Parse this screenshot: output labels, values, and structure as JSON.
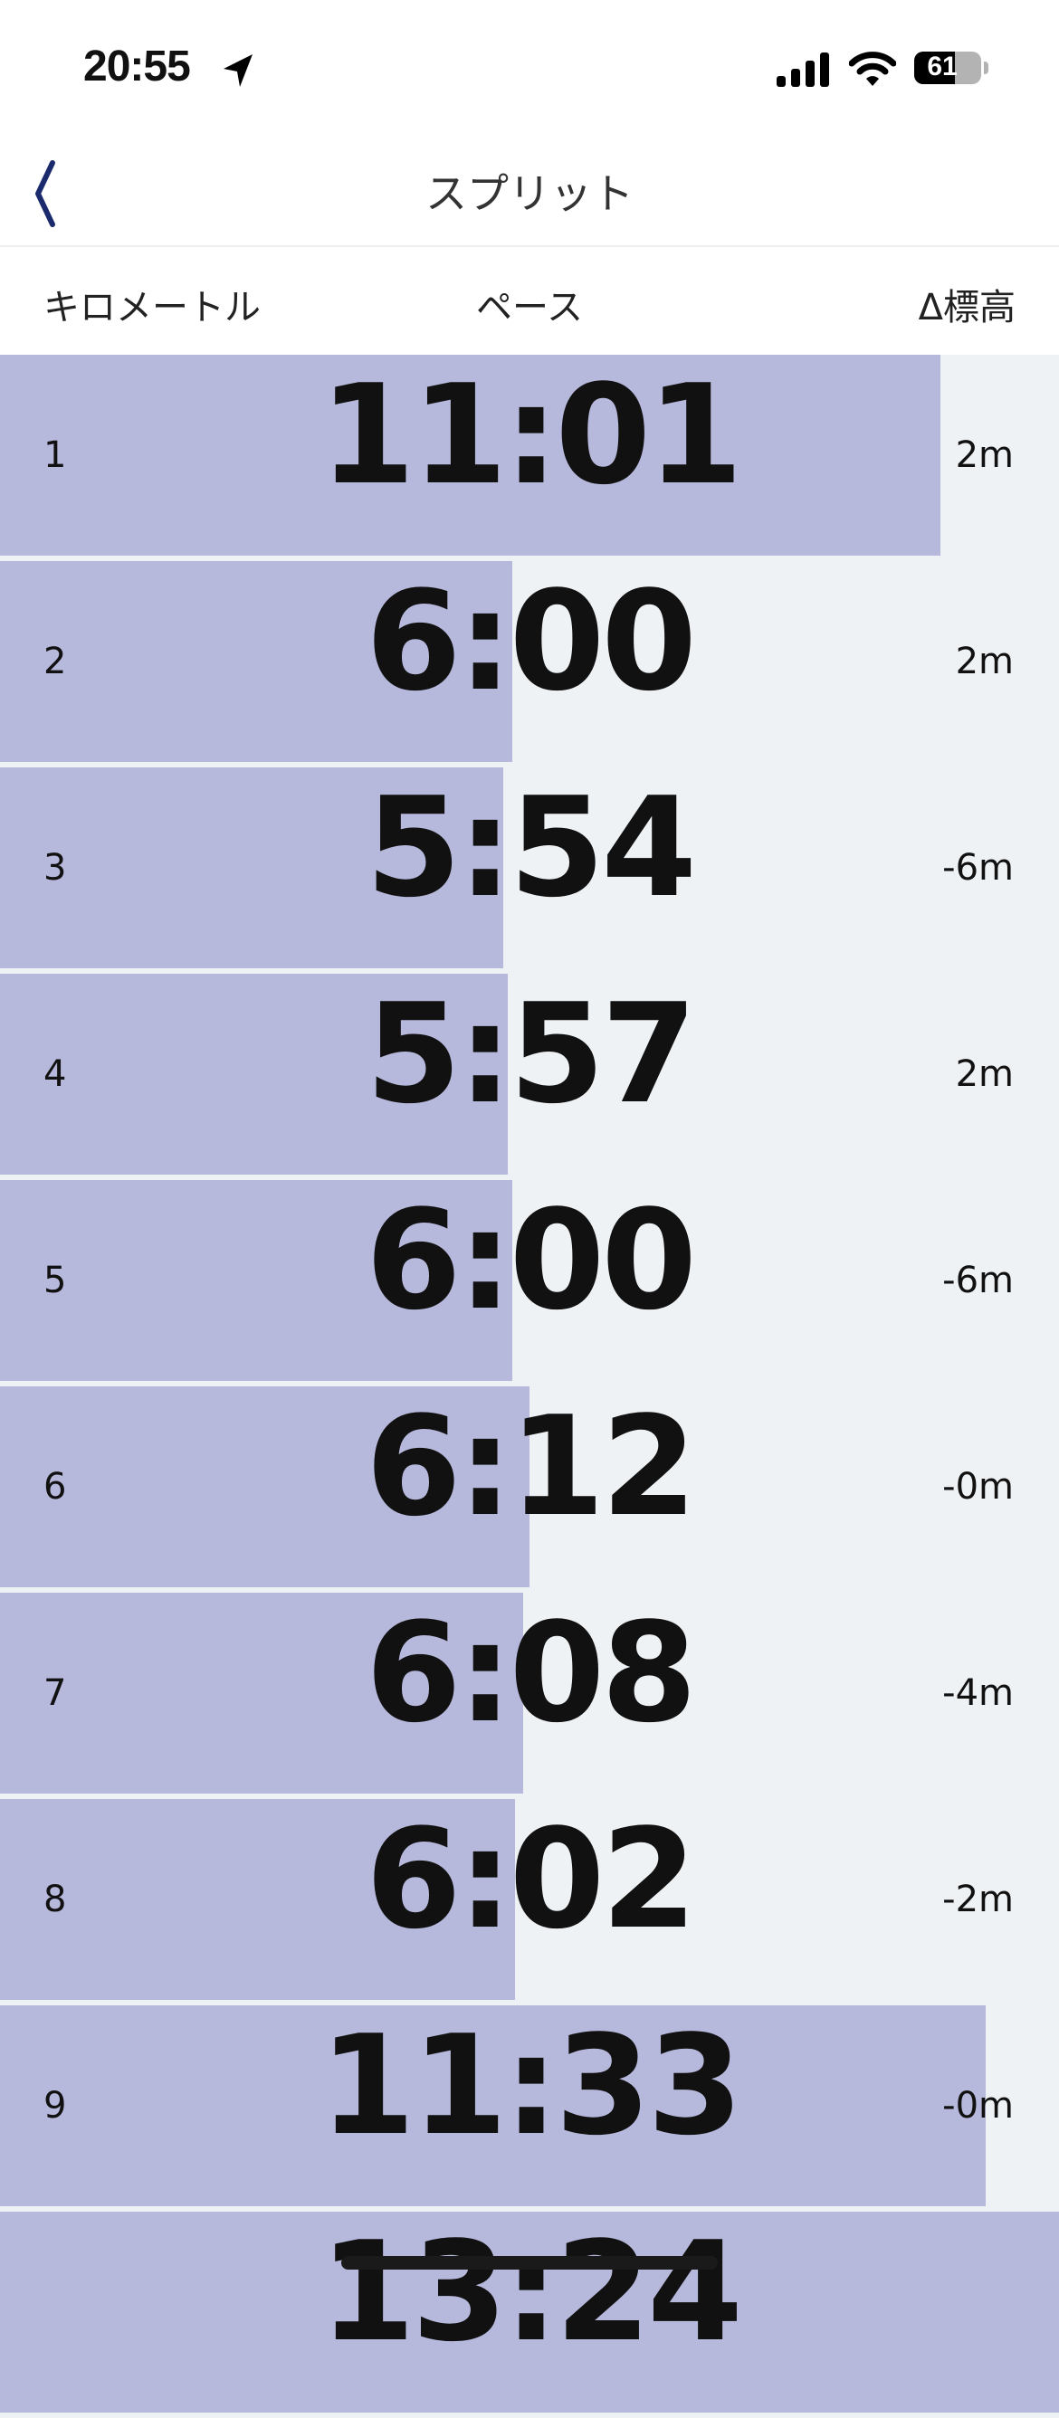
{
  "status_bar": {
    "time": "20:55",
    "battery": "61",
    "battery_level": 61,
    "icons": [
      "location-arrow-icon",
      "signal-icon",
      "wifi-icon",
      "battery-icon"
    ]
  },
  "nav": {
    "title": "スプリット",
    "back_icon": "chevron-left-icon"
  },
  "columns": {
    "km": "キロメートル",
    "pace": "ペース",
    "elevation": "Δ標高"
  },
  "splits": [
    {
      "km": "1",
      "pace": "11:01",
      "elevation": "2m"
    },
    {
      "km": "2",
      "pace": "6:00",
      "elevation": "2m"
    },
    {
      "km": "3",
      "pace": "5:54",
      "elevation": "-6m"
    },
    {
      "km": "4",
      "pace": "5:57",
      "elevation": "2m"
    },
    {
      "km": "5",
      "pace": "6:00",
      "elevation": "-6m"
    },
    {
      "km": "6",
      "pace": "6:12",
      "elevation": "-0m"
    },
    {
      "km": "7",
      "pace": "6:08",
      "elevation": "-4m"
    },
    {
      "km": "8",
      "pace": "6:02",
      "elevation": "-2m"
    },
    {
      "km": "9",
      "pace": "11:33",
      "elevation": "-0m"
    },
    {
      "km": "",
      "pace": "13:24",
      "elevation": ""
    }
  ],
  "colors": {
    "bar": "#b6b8dc",
    "background": "#eff2f5",
    "accent": "#1a2a6c"
  }
}
